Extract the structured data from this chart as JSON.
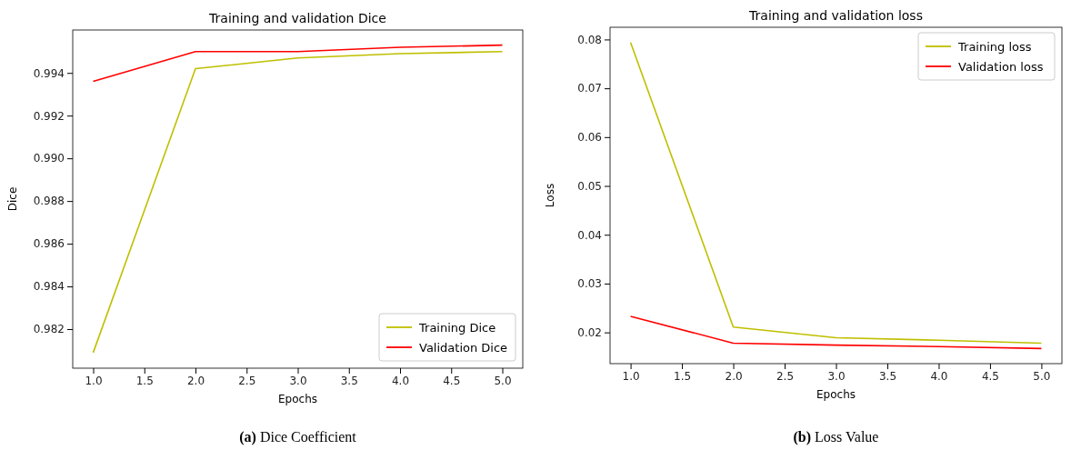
{
  "chart_data": [
    {
      "type": "line",
      "title": "Training and validation Dice",
      "xlabel": "Epochs",
      "ylabel": "Dice",
      "x": [
        1,
        2,
        3,
        4,
        5
      ],
      "series": [
        {
          "name": "Training Dice",
          "color": "#bfbf00",
          "values": [
            0.9809,
            0.9942,
            0.9947,
            0.9949,
            0.995
          ]
        },
        {
          "name": "Validation Dice",
          "color": "#ff0000",
          "values": [
            0.9936,
            0.995,
            0.995,
            0.9952,
            0.9953
          ]
        }
      ],
      "xlim": [
        0.8,
        5.2
      ],
      "xticks": [
        {
          "value": 1,
          "label": "1.0"
        },
        {
          "value": 1.5,
          "label": "1.5"
        },
        {
          "value": 2,
          "label": "2.0"
        },
        {
          "value": 2.5,
          "label": "2.5"
        },
        {
          "value": 3,
          "label": "3.0"
        },
        {
          "value": 3.5,
          "label": "3.5"
        },
        {
          "value": 4,
          "label": "4.0"
        },
        {
          "value": 4.5,
          "label": "4.5"
        },
        {
          "value": 5,
          "label": "5.0"
        }
      ],
      "ylim": [
        0.98017,
        0.99601
      ],
      "yticks": [
        {
          "value": 0.982,
          "label": "0.982"
        },
        {
          "value": 0.984,
          "label": "0.984"
        },
        {
          "value": 0.986,
          "label": "0.986"
        },
        {
          "value": 0.988,
          "label": "0.988"
        },
        {
          "value": 0.99,
          "label": "0.990"
        },
        {
          "value": 0.992,
          "label": "0.992"
        },
        {
          "value": 0.994,
          "label": "0.994"
        }
      ],
      "legend": "bottom right",
      "grid": false,
      "marker": "none",
      "line_style": "solid",
      "annotations": [
        "(a) Dice Coefficient"
      ]
    },
    {
      "type": "line",
      "title": "Training and validation loss",
      "xlabel": "Epochs",
      "ylabel": "Loss",
      "x": [
        1,
        2,
        3,
        4,
        5
      ],
      "series": [
        {
          "name": "Training loss",
          "color": "#bfbf00",
          "values": [
            0.0794,
            0.0211,
            0.0189,
            0.0184,
            0.0178
          ]
        },
        {
          "name": "Validation loss",
          "color": "#ff0000",
          "values": [
            0.0233,
            0.0178,
            0.0174,
            0.0171,
            0.0167
          ]
        }
      ],
      "xlim": [
        0.8,
        5.2
      ],
      "xticks": [
        {
          "value": 1,
          "label": "1.0"
        },
        {
          "value": 1.5,
          "label": "1.5"
        },
        {
          "value": 2,
          "label": "2.0"
        },
        {
          "value": 2.5,
          "label": "2.5"
        },
        {
          "value": 3,
          "label": "3.0"
        },
        {
          "value": 3.5,
          "label": "3.5"
        },
        {
          "value": 4,
          "label": "4.0"
        },
        {
          "value": 4.5,
          "label": "4.5"
        },
        {
          "value": 5,
          "label": "5.0"
        }
      ],
      "ylim": [
        0.0136,
        0.0825
      ],
      "yticks": [
        {
          "value": 0.02,
          "label": "0.02"
        },
        {
          "value": 0.03,
          "label": "0.03"
        },
        {
          "value": 0.04,
          "label": "0.04"
        },
        {
          "value": 0.05,
          "label": "0.05"
        },
        {
          "value": 0.06,
          "label": "0.06"
        },
        {
          "value": 0.07,
          "label": "0.07"
        },
        {
          "value": 0.08,
          "label": "0.08"
        }
      ],
      "legend": "top right",
      "grid": false,
      "marker": "none",
      "line_style": "solid",
      "annotations": [
        "(b) Loss Value"
      ]
    }
  ]
}
